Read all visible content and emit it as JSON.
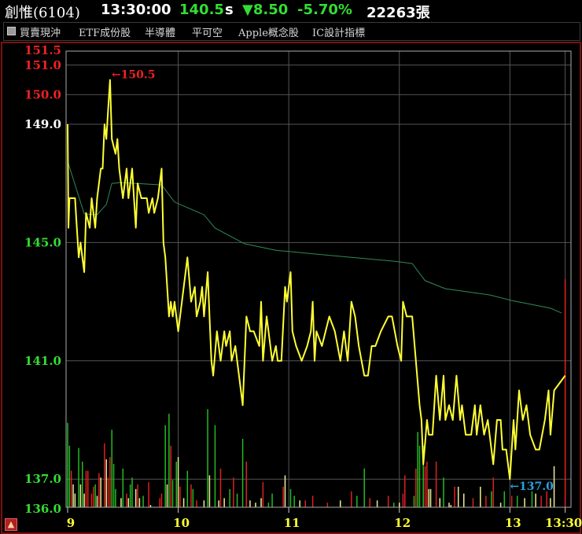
{
  "header": {
    "stock_name": "創惟(6104)",
    "time": "13:30:00",
    "price": "140.5",
    "price_suffix": "s",
    "change": "▼8.50",
    "change_pct": "-5.70%",
    "volume": "22263張"
  },
  "tags": {
    "checkbox_checked": true,
    "items": [
      "買賣現沖",
      "ETF成份股",
      "半導體",
      "平可空",
      "Apple概念股",
      "IC設計指標"
    ]
  },
  "colors": {
    "price_line": "#ffff33",
    "average_line": "#2e8b57",
    "up": "#e02020",
    "down": "#22bb22",
    "flat_volume": "#eeee99",
    "reference": "#ffffff",
    "grid": "#555555",
    "low_marker": "#2aa0e0"
  },
  "icons": {
    "alert": "bell-icon"
  },
  "chart_data": {
    "type": "line",
    "ylim": [
      136.0,
      151.5
    ],
    "xlim": [
      "9:00",
      "13:30"
    ],
    "grid": true,
    "reference_price": 149.0,
    "y_ticks": [
      {
        "label": "151.5",
        "value": 151.5,
        "color": "#ee2222"
      },
      {
        "label": "151.0",
        "value": 151.0,
        "color": "#ee2222"
      },
      {
        "label": "150.0",
        "value": 150.0,
        "color": "#ee2222"
      },
      {
        "label": "149.0",
        "value": 149.0,
        "color": "#ffffff"
      },
      {
        "label": "145.0",
        "value": 145.0,
        "color": "#33dd33"
      },
      {
        "label": "141.0",
        "value": 141.0,
        "color": "#33dd33"
      },
      {
        "label": "137.0",
        "value": 137.0,
        "color": "#33dd33"
      },
      {
        "label": "136.0",
        "value": 136.0,
        "color": "#33dd33"
      }
    ],
    "x_ticks": [
      {
        "label": "9",
        "time": "9:00"
      },
      {
        "label": "10",
        "time": "10:00"
      },
      {
        "label": "11",
        "time": "11:00"
      },
      {
        "label": "12",
        "time": "12:00"
      },
      {
        "label": "13",
        "time": "13:00"
      },
      {
        "label": "13:30",
        "time": "13:30"
      }
    ],
    "annotations": [
      {
        "label": "←150.5",
        "time": "9:23",
        "price": 150.5,
        "color": "#ee2222"
      },
      {
        "label": "←137.0",
        "time": "13:00",
        "price": 137.0,
        "color": "#2aa0e0"
      }
    ],
    "price_series": [
      [
        "9:00",
        149
      ],
      [
        "9:00",
        145.5
      ],
      [
        "9:01",
        146.5
      ],
      [
        "9:04",
        146.5
      ],
      [
        "9:05",
        145.5
      ],
      [
        "9:06",
        144.5
      ],
      [
        "9:07",
        145
      ],
      [
        "9:08",
        144.5
      ],
      [
        "9:09",
        144
      ],
      [
        "9:10",
        146
      ],
      [
        "9:12",
        145.5
      ],
      [
        "9:13",
        146.5
      ],
      [
        "9:14",
        146
      ],
      [
        "9:15",
        145.5
      ],
      [
        "9:16",
        146.5
      ],
      [
        "9:18",
        147.5
      ],
      [
        "9:19",
        147.5
      ],
      [
        "9:20",
        149
      ],
      [
        "9:21",
        148.5
      ],
      [
        "9:22",
        149.5
      ],
      [
        "9:23",
        150.5
      ],
      [
        "9:24",
        148.5
      ],
      [
        "9:26",
        148
      ],
      [
        "9:27",
        148.5
      ],
      [
        "9:28",
        147.5
      ],
      [
        "9:30",
        146.5
      ],
      [
        "9:32",
        147.5
      ],
      [
        "9:33",
        146.5
      ],
      [
        "9:35",
        147.5
      ],
      [
        "9:37",
        145.5
      ],
      [
        "9:38",
        147
      ],
      [
        "9:40",
        146.5
      ],
      [
        "9:43",
        146.5
      ],
      [
        "9:44",
        146
      ],
      [
        "9:46",
        146.5
      ],
      [
        "9:47",
        146
      ],
      [
        "9:49",
        146.5
      ],
      [
        "9:51",
        147.5
      ],
      [
        "9:52",
        145
      ],
      [
        "9:53",
        144.5
      ],
      [
        "9:55",
        142.5
      ],
      [
        "9:56",
        143
      ],
      [
        "9:57",
        142.5
      ],
      [
        "9:58",
        143
      ],
      [
        "10:00",
        142
      ],
      [
        "10:02",
        143
      ],
      [
        "10:05",
        144.5
      ],
      [
        "10:07",
        143
      ],
      [
        "10:09",
        143.5
      ],
      [
        "10:10",
        142.5
      ],
      [
        "10:12",
        143
      ],
      [
        "10:13",
        143.5
      ],
      [
        "10:14",
        142.5
      ],
      [
        "10:16",
        144
      ],
      [
        "10:17",
        142.5
      ],
      [
        "10:18",
        141
      ],
      [
        "10:19",
        140.5
      ],
      [
        "10:21",
        142
      ],
      [
        "10:23",
        141
      ],
      [
        "10:25",
        142
      ],
      [
        "10:26",
        141.5
      ],
      [
        "10:28",
        142
      ],
      [
        "10:29",
        141
      ],
      [
        "10:31",
        141.5
      ],
      [
        "10:33",
        140.5
      ],
      [
        "10:35",
        139.5
      ],
      [
        "10:37",
        142.5
      ],
      [
        "10:39",
        142
      ],
      [
        "10:41",
        142
      ],
      [
        "10:44",
        141.5
      ],
      [
        "10:45",
        143
      ],
      [
        "10:46",
        141
      ],
      [
        "10:48",
        142.5
      ],
      [
        "10:49",
        142
      ],
      [
        "10:51",
        141
      ],
      [
        "10:53",
        141.5
      ],
      [
        "10:54",
        141
      ],
      [
        "10:56",
        141
      ],
      [
        "10:58",
        143.5
      ],
      [
        "10:59",
        143
      ],
      [
        "11:01",
        144
      ],
      [
        "11:02",
        142
      ],
      [
        "11:04",
        141.5
      ],
      [
        "11:07",
        141
      ],
      [
        "11:10",
        141.5
      ],
      [
        "11:12",
        142
      ],
      [
        "11:13",
        143
      ],
      [
        "11:14",
        141
      ],
      [
        "11:15",
        142
      ],
      [
        "11:18",
        141.5
      ],
      [
        "11:22",
        142.5
      ],
      [
        "11:25",
        142
      ],
      [
        "11:28",
        141
      ],
      [
        "11:30",
        142
      ],
      [
        "11:32",
        141
      ],
      [
        "11:34",
        143
      ],
      [
        "11:36",
        142.5
      ],
      [
        "11:38",
        141.5
      ],
      [
        "11:41",
        140.5
      ],
      [
        "11:43",
        140.5
      ],
      [
        "11:45",
        141.5
      ],
      [
        "11:47",
        141.5
      ],
      [
        "11:50",
        142
      ],
      [
        "11:54",
        142.5
      ],
      [
        "11:56",
        142.5
      ],
      [
        "11:59",
        141.5
      ],
      [
        "12:01",
        141
      ],
      [
        "12:02",
        143
      ],
      [
        "12:04",
        142.5
      ],
      [
        "12:07",
        142.5
      ],
      [
        "12:09",
        141
      ],
      [
        "12:11",
        139.5
      ],
      [
        "12:12",
        139
      ],
      [
        "12:13",
        137.5
      ],
      [
        "12:15",
        139
      ],
      [
        "12:16",
        138.5
      ],
      [
        "12:18",
        138.5
      ],
      [
        "12:20",
        140.5
      ],
      [
        "12:22",
        139
      ],
      [
        "12:24",
        140.5
      ],
      [
        "12:25",
        139
      ],
      [
        "12:27",
        139.5
      ],
      [
        "12:29",
        139
      ],
      [
        "12:31",
        140.5
      ],
      [
        "12:33",
        139
      ],
      [
        "12:34",
        139.5
      ],
      [
        "12:36",
        138.5
      ],
      [
        "12:39",
        138.5
      ],
      [
        "12:41",
        139.5
      ],
      [
        "12:42",
        138.5
      ],
      [
        "12:44",
        139.5
      ],
      [
        "12:46",
        138.5
      ],
      [
        "12:48",
        139
      ],
      [
        "12:51",
        137.5
      ],
      [
        "12:53",
        139
      ],
      [
        "12:55",
        139
      ],
      [
        "12:56",
        138
      ],
      [
        "12:58",
        138
      ],
      [
        "13:00",
        137
      ],
      [
        "13:02",
        139
      ],
      [
        "13:03",
        138
      ],
      [
        "13:05",
        140
      ],
      [
        "13:07",
        139
      ],
      [
        "13:09",
        139.5
      ],
      [
        "13:11",
        138.5
      ],
      [
        "13:14",
        138
      ],
      [
        "13:16",
        138
      ],
      [
        "13:19",
        139
      ],
      [
        "13:21",
        140
      ],
      [
        "13:22",
        138.5
      ],
      [
        "13:24",
        140
      ],
      [
        "13:30",
        140.5
      ]
    ],
    "average_series": [
      [
        "9:00",
        147.75
      ],
      [
        "9:09",
        145.97
      ],
      [
        "9:16",
        145.94
      ],
      [
        "9:21",
        146.29
      ],
      [
        "9:24",
        147.0
      ],
      [
        "9:29",
        147.03
      ],
      [
        "9:51",
        146.95
      ],
      [
        "9:58",
        146.37
      ],
      [
        "10:14",
        145.94
      ],
      [
        "10:20",
        145.49
      ],
      [
        "10:36",
        144.96
      ],
      [
        "10:53",
        144.74
      ],
      [
        "11:23",
        144.56
      ],
      [
        "11:57",
        144.37
      ],
      [
        "12:07",
        144.29
      ],
      [
        "12:14",
        143.71
      ],
      [
        "12:25",
        143.44
      ],
      [
        "12:49",
        143.23
      ],
      [
        "13:01",
        143.04
      ],
      [
        "13:22",
        142.78
      ],
      [
        "13:28",
        142.62
      ]
    ],
    "volume_relative": [
      [
        "9:00",
        37,
        "d"
      ],
      [
        "9:01",
        27,
        "d"
      ],
      [
        "9:02",
        16,
        "u"
      ],
      [
        "9:03",
        10,
        "f"
      ],
      [
        "9:04",
        6,
        "f"
      ],
      [
        "9:06",
        26,
        "d"
      ],
      [
        "9:07",
        10,
        "f"
      ],
      [
        "9:08",
        20,
        "d"
      ],
      [
        "9:09",
        6,
        "f"
      ],
      [
        "9:10",
        16,
        "u"
      ],
      [
        "9:11",
        16,
        "u"
      ],
      [
        "9:13",
        6,
        "u"
      ],
      [
        "9:14",
        9,
        "u"
      ],
      [
        "9:15",
        10,
        "d"
      ],
      [
        "9:16",
        5,
        "f"
      ],
      [
        "9:17",
        15,
        "u"
      ],
      [
        "9:18",
        13,
        "f"
      ],
      [
        "9:20",
        28,
        "u"
      ],
      [
        "9:21",
        21,
        "f"
      ],
      [
        "9:22",
        13,
        "u"
      ],
      [
        "9:23",
        22,
        "u"
      ],
      [
        "9:24",
        34,
        "d"
      ],
      [
        "9:25",
        19,
        "d"
      ],
      [
        "9:26",
        8,
        "d"
      ],
      [
        "9:29",
        4,
        "f"
      ],
      [
        "9:30",
        17,
        "d"
      ],
      [
        "9:32",
        6,
        "u"
      ],
      [
        "9:33",
        4,
        "f"
      ],
      [
        "9:34",
        10,
        "d"
      ],
      [
        "9:35",
        13,
        "d"
      ],
      [
        "9:37",
        8,
        "f"
      ],
      [
        "9:38",
        10,
        "u"
      ],
      [
        "9:39",
        4,
        "f"
      ],
      [
        "9:41",
        5,
        "d"
      ],
      [
        "9:44",
        11,
        "u"
      ],
      [
        "9:45",
        1,
        "f"
      ],
      [
        "9:50",
        4,
        "u"
      ],
      [
        "9:51",
        6,
        "u"
      ],
      [
        "9:53",
        36,
        "d"
      ],
      [
        "9:54",
        10,
        "f"
      ],
      [
        "9:55",
        41,
        "d"
      ],
      [
        "9:56",
        27,
        "u"
      ],
      [
        "9:57",
        12,
        "d"
      ],
      [
        "9:59",
        20,
        "d"
      ],
      [
        "10:00",
        22,
        "f"
      ],
      [
        "10:01",
        9,
        "u"
      ],
      [
        "10:03",
        4,
        "f"
      ],
      [
        "10:05",
        16,
        "d"
      ],
      [
        "10:07",
        10,
        "u"
      ],
      [
        "10:08",
        8,
        "d"
      ],
      [
        "10:10",
        3,
        "u"
      ],
      [
        "10:14",
        3,
        "f"
      ],
      [
        "10:16",
        43,
        "d"
      ],
      [
        "10:17",
        14,
        "f"
      ],
      [
        "10:20",
        36,
        "d"
      ],
      [
        "10:22",
        3,
        "f"
      ],
      [
        "10:23",
        17,
        "u"
      ],
      [
        "10:25",
        4,
        "f"
      ],
      [
        "10:28",
        8,
        "d"
      ],
      [
        "10:30",
        13,
        "u"
      ],
      [
        "10:32",
        6,
        "d"
      ],
      [
        "10:35",
        30,
        "d"
      ],
      [
        "10:37",
        20,
        "u"
      ],
      [
        "10:39",
        3,
        "f"
      ],
      [
        "10:42",
        2,
        "f"
      ],
      [
        "10:45",
        4,
        "f"
      ],
      [
        "10:46",
        11,
        "u"
      ],
      [
        "10:49",
        2,
        "d"
      ],
      [
        "10:51",
        6,
        "d"
      ],
      [
        "10:57",
        9,
        "u"
      ],
      [
        "10:58",
        14,
        "f"
      ],
      [
        "11:01",
        8,
        "d"
      ],
      [
        "11:03",
        5,
        "d"
      ],
      [
        "11:06",
        3,
        "f"
      ],
      [
        "11:09",
        3,
        "u"
      ],
      [
        "11:13",
        5,
        "u"
      ],
      [
        "11:21",
        2,
        "u"
      ],
      [
        "11:28",
        3,
        "f"
      ],
      [
        "11:34",
        7,
        "u"
      ],
      [
        "11:37",
        5,
        "d"
      ],
      [
        "11:41",
        17,
        "d"
      ],
      [
        "11:44",
        4,
        "u"
      ],
      [
        "11:48",
        3,
        "f"
      ],
      [
        "11:54",
        5,
        "u"
      ],
      [
        "11:57",
        2,
        "d"
      ],
      [
        "12:00",
        2,
        "f"
      ],
      [
        "12:02",
        6,
        "u"
      ],
      [
        "12:03",
        14,
        "u"
      ],
      [
        "12:08",
        5,
        "d"
      ],
      [
        "12:09",
        17,
        "u"
      ],
      [
        "12:10",
        33,
        "d"
      ],
      [
        "12:11",
        27,
        "d"
      ],
      [
        "12:13",
        27,
        "d"
      ],
      [
        "12:14",
        18,
        "u"
      ],
      [
        "12:15",
        20,
        "u"
      ],
      [
        "12:16",
        8,
        "f"
      ],
      [
        "12:17",
        8,
        "f"
      ],
      [
        "12:20",
        20,
        "u"
      ],
      [
        "12:22",
        4,
        "f"
      ],
      [
        "12:24",
        13,
        "d"
      ],
      [
        "12:27",
        2,
        "f"
      ],
      [
        "12:28",
        1,
        "f"
      ],
      [
        "12:30",
        9,
        "u"
      ],
      [
        "12:32",
        9,
        "f"
      ],
      [
        "12:35",
        6,
        "f"
      ],
      [
        "12:40",
        4,
        "u"
      ],
      [
        "12:44",
        9,
        "f"
      ],
      [
        "12:47",
        5,
        "u"
      ],
      [
        "12:50",
        7,
        "d"
      ],
      [
        "12:51",
        13,
        "u"
      ],
      [
        "12:55",
        2,
        "f"
      ],
      [
        "12:57",
        7,
        "d"
      ],
      [
        "13:01",
        5,
        "u"
      ],
      [
        "13:04",
        5,
        "d"
      ],
      [
        "13:08",
        4,
        "f"
      ],
      [
        "13:12",
        7,
        "d"
      ],
      [
        "13:14",
        6,
        "f"
      ],
      [
        "13:17",
        5,
        "u"
      ],
      [
        "13:20",
        7,
        "u"
      ],
      [
        "13:22",
        4,
        "f"
      ],
      [
        "13:24",
        18,
        "f"
      ],
      [
        "13:30",
        100,
        "u"
      ]
    ]
  }
}
